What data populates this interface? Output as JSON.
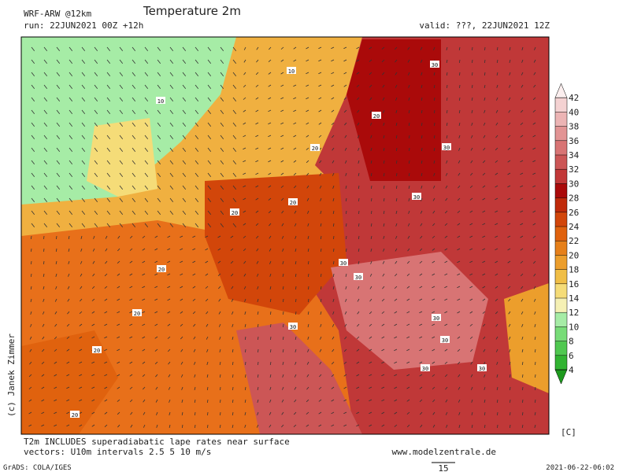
{
  "header": {
    "model": "WRF-ARW @12km",
    "title": "Temperature 2m",
    "run": "run: 22JUN2021 00Z +12h",
    "valid": "valid: ???, 22JUN2021 12Z"
  },
  "copyright": "(c) Janek Zimmer",
  "colorbar": {
    "levels": [
      4,
      6,
      8,
      10,
      12,
      14,
      16,
      18,
      20,
      22,
      24,
      26,
      28,
      30,
      32,
      34,
      36,
      38,
      40,
      42
    ],
    "colors": [
      "#1e9a1e",
      "#32b432",
      "#50c850",
      "#78dc78",
      "#a6eca6",
      "#f5f0b4",
      "#f5dc78",
      "#f0be46",
      "#ec9e2c",
      "#e6801a",
      "#e0620e",
      "#d2460a",
      "#c02a0a",
      "#aa0a0a",
      "#c23838",
      "#cc5656",
      "#d87474",
      "#e29494",
      "#ecb4b4",
      "#f4d2d2",
      "#fbeeee"
    ],
    "unit": "[C]"
  },
  "map_labels": [
    "10",
    "10",
    "20",
    "20",
    "20",
    "20",
    "20",
    "30",
    "30",
    "30",
    "30",
    "30",
    "30",
    "30",
    "20",
    "20",
    "30",
    "30",
    "20",
    "30"
  ],
  "footer": {
    "note1": "T2m INCLUDES superadiabatic lape rates near surface",
    "note2": "vectors: U10m intervals 2.5 5 10 m/s",
    "website": "www.modelzentrale.de",
    "grads": "GrADS: COLA/IGES",
    "vector_ref": "15",
    "timestamp": "2021-06-22-06:02"
  }
}
